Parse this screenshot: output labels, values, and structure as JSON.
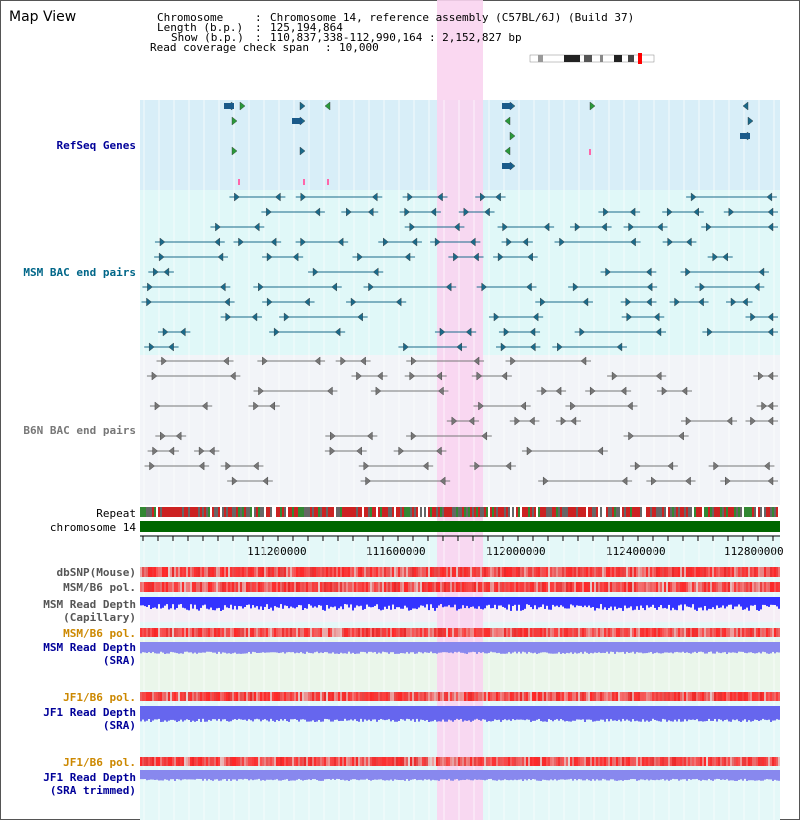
{
  "title": "Map View",
  "header": {
    "chromosome_key": "Chromosome",
    "chromosome_value": "Chromosome 14, reference assembly (C57BL/6J) (Build 37)",
    "length_key": "Length (b.p.)",
    "length_value": "125,194,864",
    "show_key": "Show (b.p.)",
    "show_value": "110,837,338-112,990,164 : 2,152,827 bp",
    "coverage_key": "Read coverage check span",
    "coverage_value": "10,000"
  },
  "tracks": {
    "refseq": "RefSeq Genes",
    "msm_bac": "MSM BAC end pairs",
    "b6n_bac": "B6N BAC end pairs",
    "repeat": "Repeat",
    "chromosome": "chromosome 14",
    "dbsnp": "dbSNP(Mouse)",
    "msm_b6_pol": "MSM/B6 pol.",
    "msm_rd_cap_1": "MSM Read Depth",
    "msm_rd_cap_2": "(Capillary)",
    "msm_b6_pol2": "MSM/B6 pol.",
    "msm_rd_sra_1": "MSM Read Depth",
    "msm_rd_sra_2": "(SRA)",
    "jf1_b6_pol": "JF1/B6 pol.",
    "jf1_rd_sra_1": "JF1 Read Depth",
    "jf1_rd_sra_2": "(SRA)",
    "jf1_b6_pol2": "JF1/B6 pol.",
    "jf1_rd_trim_1": "JF1 Read Depth",
    "jf1_rd_trim_2": "(SRA trimmed)"
  },
  "axis": {
    "ticks": [
      "111200000",
      "111600000",
      "112000000",
      "112400000",
      "112800000"
    ]
  },
  "colors": {
    "refseq_bg": "#d8eef8",
    "bac_bg": "#e0f8f8",
    "highlight": "#f9d8f0",
    "msm_feature": "#1a6a8a",
    "b6n_feature": "#777777",
    "chromosome": "#006600",
    "label_blue": "#000099",
    "label_orange": "#cc8800",
    "label_teal": "#006688",
    "depth_strong": "#3333ff",
    "depth_light": "#8888ee"
  }
}
